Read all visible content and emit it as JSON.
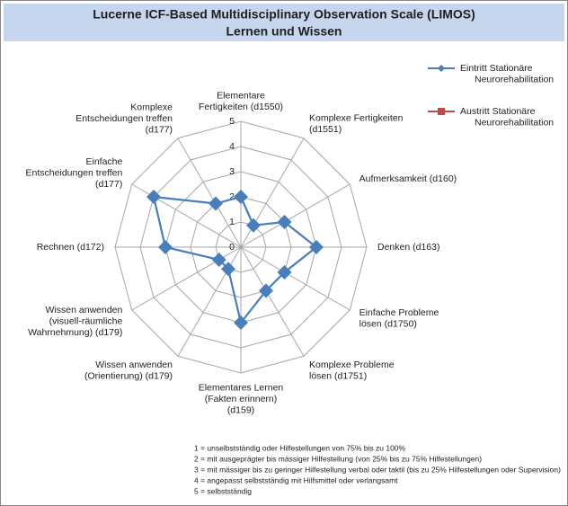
{
  "chart_data": {
    "type": "radar",
    "title": "Lucerne ICF-Based Multidisciplinary Observation Scale (LIMOS)",
    "subtitle": "Lernen und Wissen",
    "categories": [
      "Elementare\nFertigkeiten (d1550)",
      "Komplexe Fertigkeiten\n(d1551)",
      "Aufmerksamkeit (d160)",
      "Denken (d163)",
      "Einfache Probleme\nlösen (d1750)",
      "Komplexe Probleme\nlösen (d1751)",
      "Elementares Lernen\n(Fakten erinnern)\n(d159)",
      "Wissen anwenden\n(Orientierung) (d179)",
      "Wissen anwenden\n(visuell-räumliche\nWahrnehmung) (d179)",
      "Rechnen (d172)",
      "Einfache\nEntscheidungen treffen\n(d177)",
      "Komplexe\nEntscheidungen treffen\n(d177)"
    ],
    "series": [
      {
        "name": "Eintritt Stationäre\nNeurorehabilitation",
        "color": "#4a7ebb",
        "marker": "diamond",
        "values": [
          2,
          1,
          2,
          3,
          2,
          2,
          3,
          1,
          1,
          3,
          4,
          2
        ]
      },
      {
        "name": "Austritt Stationäre\nNeurorehabilitation",
        "color": "#be4b48",
        "marker": "square",
        "values": [
          null,
          null,
          null,
          null,
          null,
          null,
          null,
          null,
          null,
          null,
          null,
          null
        ]
      }
    ],
    "ylim": [
      0,
      5
    ],
    "yticks": [
      0,
      1,
      2,
      3,
      4,
      5
    ],
    "grid": true,
    "footnotes": [
      "1 = unselbstständig oder Hilfestellungen von 75% bis zu 100%",
      "2 = mit ausgeprägter bis mässiger Hilfestellung (von 25% bis zu 75% Hilfestellungen)",
      "3 = mit mässiger bis zu geringer Hilfestellung verbal oder taktil (bis zu 25% Hilfestellungen oder Supervision)",
      "4 = angepasst selbstständig mit Hilfsmittel oder verlangsamt",
      "5 = selbstständig"
    ]
  }
}
